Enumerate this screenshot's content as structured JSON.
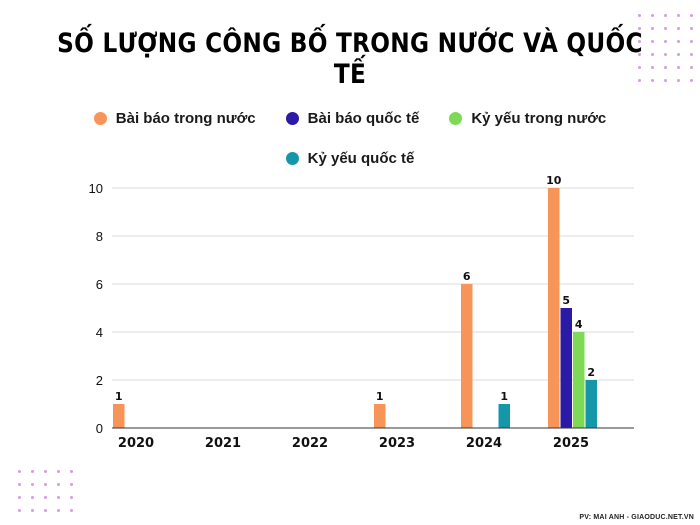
{
  "title": "SỐ LƯỢNG CÔNG BỐ TRONG NƯỚC VÀ QUỐC TẾ",
  "credit": "PV: MAI ANH - GIAODUC.NET.VN",
  "colors": {
    "accent_dots": "#d49be8",
    "grid": "#d9d9d9",
    "axis": "#333333"
  },
  "chart_data": {
    "type": "bar",
    "categories": [
      "2020",
      "2021",
      "2022",
      "2023",
      "2024",
      "2025"
    ],
    "series": [
      {
        "name": "Bài báo trong nước",
        "color": "#f79457",
        "values": [
          1,
          0,
          0,
          1,
          6,
          10
        ]
      },
      {
        "name": "Bài báo quốc tế",
        "color": "#2b1aa6",
        "values": [
          0,
          0,
          0,
          0,
          0,
          5
        ]
      },
      {
        "name": "Kỷ yếu trong nước",
        "color": "#7ed957",
        "values": [
          0,
          0,
          0,
          0,
          0,
          4
        ]
      },
      {
        "name": "Kỷ yếu quốc tế",
        "color": "#1497a8",
        "values": [
          0,
          0,
          0,
          0,
          1,
          2
        ]
      }
    ],
    "yticks": [
      0,
      2,
      4,
      6,
      8,
      10
    ],
    "ylim": [
      0,
      10
    ],
    "grid": true,
    "legend_position": "top",
    "data_labels": true
  }
}
